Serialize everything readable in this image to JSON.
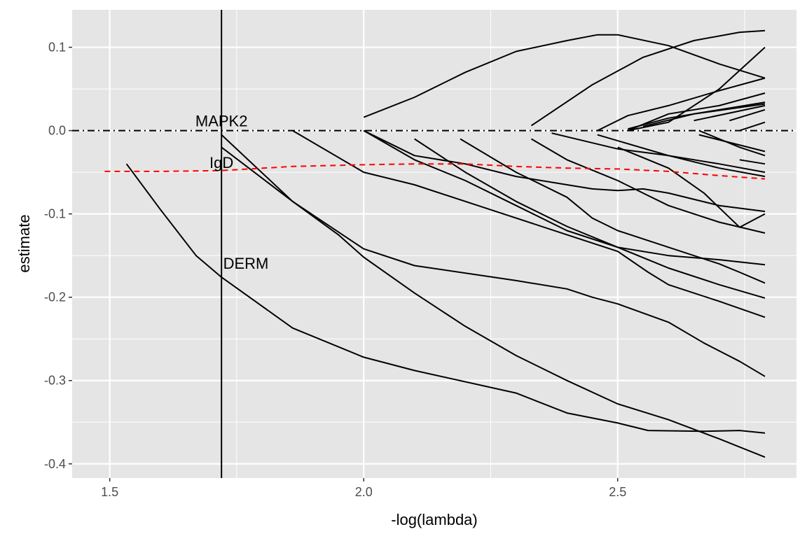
{
  "chart_data": {
    "type": "line",
    "title": "",
    "xlabel": "-log(lambda)",
    "ylabel": "estimate",
    "xlim": [
      1.426,
      2.852
    ],
    "ylim": [
      -0.417,
      0.145
    ],
    "x_ticks": [
      1.5,
      2.0,
      2.5
    ],
    "x_tick_labels": [
      "1.5",
      "2.0",
      "2.5"
    ],
    "y_ticks": [
      0.1,
      0.0,
      -0.1,
      -0.2,
      -0.3,
      -0.4
    ],
    "y_tick_labels": [
      "0.1",
      "0.0",
      "-0.1",
      "-0.2",
      "-0.3",
      "-0.4"
    ],
    "grid": true,
    "vline_x": 1.72,
    "hline_y": 0.0,
    "colors": {
      "panel": "#e5e5e5",
      "grid": "#ffffff",
      "line": "#000000",
      "mean": "#ff0000"
    },
    "annotations": [
      {
        "text": "MAPK2",
        "x": 1.72,
        "y": 0.012
      },
      {
        "text": "IgD",
        "x": 1.72,
        "y": -0.038
      },
      {
        "text": "DERM",
        "x": 1.768,
        "y": -0.159
      }
    ],
    "mean_series": [
      [
        1.49,
        -0.049
      ],
      [
        1.6,
        -0.049
      ],
      [
        1.72,
        -0.048
      ],
      [
        1.86,
        -0.043
      ],
      [
        2.0,
        -0.041
      ],
      [
        2.1,
        -0.04
      ],
      [
        2.2,
        -0.04
      ],
      [
        2.3,
        -0.043
      ],
      [
        2.4,
        -0.045
      ],
      [
        2.5,
        -0.046
      ],
      [
        2.6,
        -0.049
      ],
      [
        2.7,
        -0.054
      ],
      [
        2.79,
        -0.058
      ]
    ],
    "series": [
      [
        [
          1.533,
          -0.04
        ],
        [
          1.6,
          -0.095
        ],
        [
          1.67,
          -0.15
        ],
        [
          1.72,
          -0.176
        ],
        [
          1.86,
          -0.237
        ],
        [
          2.0,
          -0.272
        ],
        [
          2.1,
          -0.288
        ],
        [
          2.3,
          -0.315
        ],
        [
          2.4,
          -0.339
        ],
        [
          2.5,
          -0.351
        ],
        [
          2.56,
          -0.36
        ],
        [
          2.67,
          -0.361
        ],
        [
          2.74,
          -0.36
        ],
        [
          2.79,
          -0.363
        ]
      ],
      [
        [
          1.72,
          -0.005
        ],
        [
          1.86,
          -0.085
        ],
        [
          1.95,
          -0.125
        ],
        [
          2.0,
          -0.152
        ],
        [
          2.1,
          -0.195
        ],
        [
          2.2,
          -0.235
        ],
        [
          2.3,
          -0.27
        ],
        [
          2.4,
          -0.3
        ],
        [
          2.5,
          -0.328
        ],
        [
          2.6,
          -0.347
        ],
        [
          2.7,
          -0.37
        ],
        [
          2.79,
          -0.392
        ]
      ],
      [
        [
          1.72,
          -0.02
        ],
        [
          1.86,
          -0.085
        ],
        [
          2.0,
          -0.142
        ],
        [
          2.1,
          -0.162
        ],
        [
          2.3,
          -0.18
        ],
        [
          2.4,
          -0.19
        ],
        [
          2.45,
          -0.2
        ],
        [
          2.5,
          -0.208
        ],
        [
          2.6,
          -0.23
        ],
        [
          2.67,
          -0.255
        ],
        [
          2.74,
          -0.277
        ],
        [
          2.79,
          -0.295
        ]
      ],
      [
        [
          1.86,
          0.0
        ],
        [
          2.0,
          -0.05
        ],
        [
          2.1,
          -0.065
        ],
        [
          2.25,
          -0.095
        ],
        [
          2.4,
          -0.125
        ],
        [
          2.5,
          -0.145
        ],
        [
          2.56,
          -0.17
        ],
        [
          2.6,
          -0.185
        ],
        [
          2.7,
          -0.205
        ],
        [
          2.79,
          -0.224
        ]
      ],
      [
        [
          2.0,
          0.0
        ],
        [
          2.1,
          -0.035
        ],
        [
          2.2,
          -0.06
        ],
        [
          2.3,
          -0.09
        ],
        [
          2.4,
          -0.12
        ],
        [
          2.5,
          -0.14
        ],
        [
          2.6,
          -0.15
        ],
        [
          2.7,
          -0.155
        ],
        [
          2.79,
          -0.161
        ]
      ],
      [
        [
          2.1,
          -0.01
        ],
        [
          2.2,
          -0.05
        ],
        [
          2.3,
          -0.085
        ],
        [
          2.4,
          -0.115
        ],
        [
          2.5,
          -0.14
        ],
        [
          2.6,
          -0.165
        ],
        [
          2.7,
          -0.185
        ],
        [
          2.79,
          -0.201
        ]
      ],
      [
        [
          2.19,
          -0.01
        ],
        [
          2.3,
          -0.05
        ],
        [
          2.4,
          -0.08
        ],
        [
          2.45,
          -0.105
        ],
        [
          2.5,
          -0.12
        ],
        [
          2.6,
          -0.14
        ],
        [
          2.7,
          -0.16
        ],
        [
          2.74,
          -0.17
        ],
        [
          2.79,
          -0.183
        ]
      ],
      [
        [
          2.0,
          0.0
        ],
        [
          2.1,
          -0.03
        ],
        [
          2.2,
          -0.04
        ],
        [
          2.3,
          -0.055
        ],
        [
          2.4,
          -0.065
        ],
        [
          2.45,
          -0.07
        ],
        [
          2.5,
          -0.072
        ],
        [
          2.55,
          -0.07
        ],
        [
          2.6,
          -0.075
        ],
        [
          2.7,
          -0.09
        ],
        [
          2.79,
          -0.097
        ]
      ],
      [
        [
          2.33,
          -0.01
        ],
        [
          2.4,
          -0.035
        ],
        [
          2.5,
          -0.06
        ],
        [
          2.56,
          -0.078
        ],
        [
          2.6,
          -0.09
        ],
        [
          2.7,
          -0.11
        ],
        [
          2.79,
          -0.123
        ]
      ],
      [
        [
          2.5,
          -0.02
        ],
        [
          2.6,
          -0.045
        ],
        [
          2.67,
          -0.075
        ],
        [
          2.74,
          -0.116
        ],
        [
          2.79,
          -0.1
        ]
      ],
      [
        [
          2.0,
          0.016
        ],
        [
          2.1,
          0.04
        ],
        [
          2.2,
          0.07
        ],
        [
          2.3,
          0.095
        ],
        [
          2.4,
          0.108
        ],
        [
          2.46,
          0.115
        ],
        [
          2.5,
          0.115
        ],
        [
          2.6,
          0.102
        ],
        [
          2.7,
          0.08
        ],
        [
          2.79,
          0.063
        ]
      ],
      [
        [
          2.33,
          0.006
        ],
        [
          2.45,
          0.055
        ],
        [
          2.55,
          0.088
        ],
        [
          2.65,
          0.108
        ],
        [
          2.74,
          0.118
        ],
        [
          2.79,
          0.12
        ]
      ],
      [
        [
          2.46,
          0.0
        ],
        [
          2.52,
          0.018
        ],
        [
          2.6,
          0.03
        ],
        [
          2.7,
          0.048
        ],
        [
          2.79,
          0.063
        ]
      ],
      [
        [
          2.52,
          0.0
        ],
        [
          2.6,
          0.01
        ],
        [
          2.7,
          0.05
        ],
        [
          2.79,
          0.1
        ]
      ],
      [
        [
          2.52,
          0.002
        ],
        [
          2.6,
          0.015
        ],
        [
          2.7,
          0.025
        ],
        [
          2.79,
          0.034
        ]
      ],
      [
        [
          2.52,
          0.0
        ],
        [
          2.6,
          0.02
        ],
        [
          2.7,
          0.03
        ],
        [
          2.79,
          0.045
        ]
      ],
      [
        [
          2.55,
          0.005
        ],
        [
          2.65,
          0.02
        ],
        [
          2.79,
          0.032
        ]
      ],
      [
        [
          2.65,
          0.012
        ],
        [
          2.79,
          0.03
        ]
      ],
      [
        [
          2.72,
          0.012
        ],
        [
          2.79,
          0.025
        ]
      ],
      [
        [
          2.74,
          0.0
        ],
        [
          2.79,
          0.01
        ]
      ],
      [
        [
          2.37,
          -0.003
        ],
        [
          2.5,
          -0.022
        ],
        [
          2.6,
          -0.03
        ],
        [
          2.7,
          -0.04
        ],
        [
          2.79,
          -0.05
        ]
      ],
      [
        [
          2.46,
          -0.005
        ],
        [
          2.6,
          -0.03
        ],
        [
          2.7,
          -0.045
        ],
        [
          2.79,
          -0.055
        ]
      ],
      [
        [
          2.66,
          0.0
        ],
        [
          2.74,
          -0.02
        ],
        [
          2.79,
          -0.03
        ]
      ],
      [
        [
          2.66,
          -0.005
        ],
        [
          2.79,
          -0.025
        ]
      ],
      [
        [
          2.74,
          -0.035
        ],
        [
          2.79,
          -0.04
        ]
      ]
    ]
  }
}
